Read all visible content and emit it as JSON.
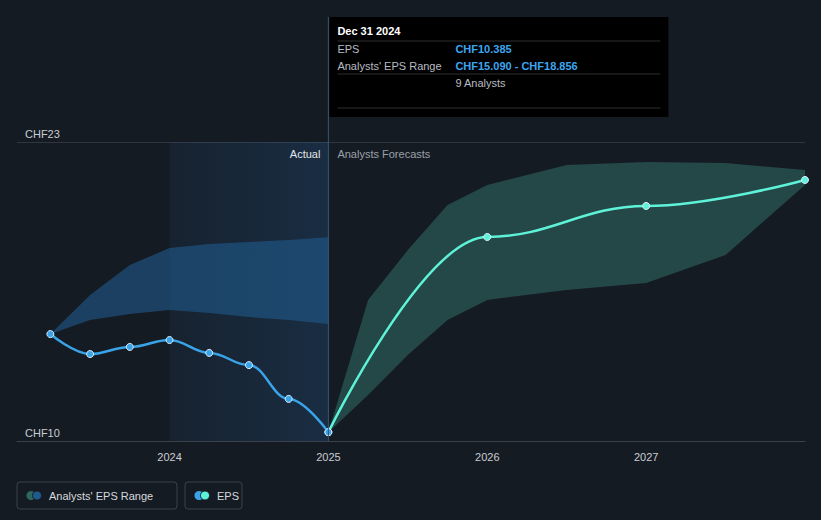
{
  "chart_data": {
    "type": "line",
    "xlim": [
      2023.04,
      2028.0
    ],
    "xticks": [
      2024,
      2025,
      2026,
      2027
    ],
    "ylim": [
      10,
      23
    ],
    "yticks": [
      {
        "value": 10,
        "label": "CHF10"
      },
      {
        "value": 23,
        "label": "CHF23"
      }
    ],
    "grid": true,
    "legend": "bottom-left",
    "annotations": [
      "Actual",
      "Analysts Forecasts"
    ],
    "tooltip": {
      "x": 2025,
      "title": "Dec 31 2024",
      "rows": [
        [
          "EPS",
          "CHF10.385"
        ],
        [
          "Analysts' EPS Range",
          "CHF15.090 - CHF18.856"
        ],
        [
          "9 Analysts"
        ]
      ]
    },
    "series": [
      {
        "name": "Analysts' EPS Range",
        "type": "band",
        "color": "#1f5a8c",
        "x": [
          2023.25,
          2023.5,
          2023.75,
          2024,
          2024.25,
          2024.5,
          2024.75,
          2025
        ],
        "lower": [
          14.65,
          15.26,
          15.52,
          15.7,
          15.57,
          15.39,
          15.26,
          15.09
        ],
        "upper": [
          14.65,
          16.35,
          17.65,
          18.39,
          18.57,
          18.65,
          18.74,
          18.856
        ]
      },
      {
        "name": "Analysts' EPS Range",
        "type": "band",
        "color": "#2f6660",
        "x": [
          2025,
          2025.25,
          2025.5,
          2025.75,
          2026,
          2026.5,
          2027,
          2027.5,
          2028
        ],
        "lower": [
          10.385,
          12.0,
          13.74,
          15.26,
          16.13,
          16.57,
          16.87,
          18.09,
          21.13
        ],
        "upper": [
          10.385,
          16.13,
          18.3,
          20.26,
          21.13,
          22.0,
          22.13,
          22.09,
          21.78
        ]
      },
      {
        "name": "EPS",
        "type": "line",
        "color": "#5ef2d9",
        "marker": "circle",
        "x": [
          2025,
          2026,
          2027,
          2028
        ],
        "values": [
          10.385,
          18.87,
          20.22,
          21.35
        ]
      },
      {
        "name": "EPS",
        "type": "line",
        "color": "#3aa3e8",
        "marker": "circle",
        "x": [
          2023.25,
          2023.5,
          2023.75,
          2024,
          2024.25,
          2024.5,
          2024.75,
          2025
        ],
        "values": [
          14.65,
          13.78,
          14.09,
          14.39,
          13.83,
          13.3,
          11.83,
          10.385
        ]
      }
    ]
  }
}
